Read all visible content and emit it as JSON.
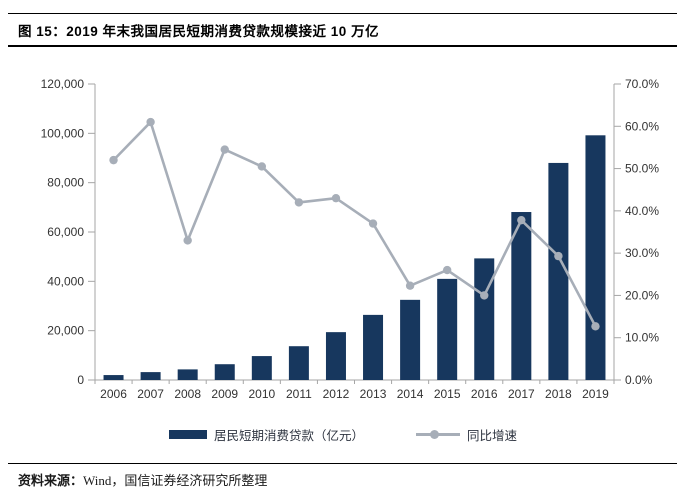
{
  "header": {
    "title": "图 15：2019 年末我国居民短期消费贷款规模接近 10 万亿"
  },
  "chart_data": {
    "type": "bar+line combo",
    "title": "2019 年末我国居民短期消费贷款规模接近 10 万亿",
    "categories": [
      "2006",
      "2007",
      "2008",
      "2009",
      "2010",
      "2011",
      "2012",
      "2013",
      "2014",
      "2015",
      "2016",
      "2017",
      "2018",
      "2019"
    ],
    "series": [
      {
        "name": "居民短期消费贷款（亿元）",
        "type": "bar",
        "axis": "left",
        "values": [
          2000,
          3200,
          4300,
          6400,
          9700,
          13700,
          19400,
          26400,
          32500,
          41000,
          49300,
          68100,
          88000,
          99200
        ]
      },
      {
        "name": "同比增速",
        "type": "line",
        "axis": "right",
        "values_pct": [
          52.0,
          61.0,
          33.0,
          54.5,
          50.5,
          42.0,
          43.0,
          37.0,
          22.3,
          26.0,
          20.0,
          37.8,
          29.3,
          12.7
        ]
      }
    ],
    "left_axis": {
      "min": 0,
      "max": 120000,
      "step": 20000,
      "labels": [
        "0",
        "20,000",
        "40,000",
        "60,000",
        "80,000",
        "100,000",
        "120,000"
      ]
    },
    "right_axis": {
      "min": 0,
      "max": 70,
      "step": 10,
      "labels": [
        "0.0%",
        "10.0%",
        "20.0%",
        "30.0%",
        "40.0%",
        "50.0%",
        "60.0%",
        "70.0%"
      ]
    },
    "grid": false,
    "legend_position": "bottom"
  },
  "footer": {
    "label": "资料来源：",
    "text": "Wind，国信证券经济研究所整理"
  },
  "colors": {
    "bar": "#17375E",
    "line": "#A7AEB8",
    "axis": "#A6A6A6",
    "tick_text": "#333333",
    "rule": "#000000"
  }
}
